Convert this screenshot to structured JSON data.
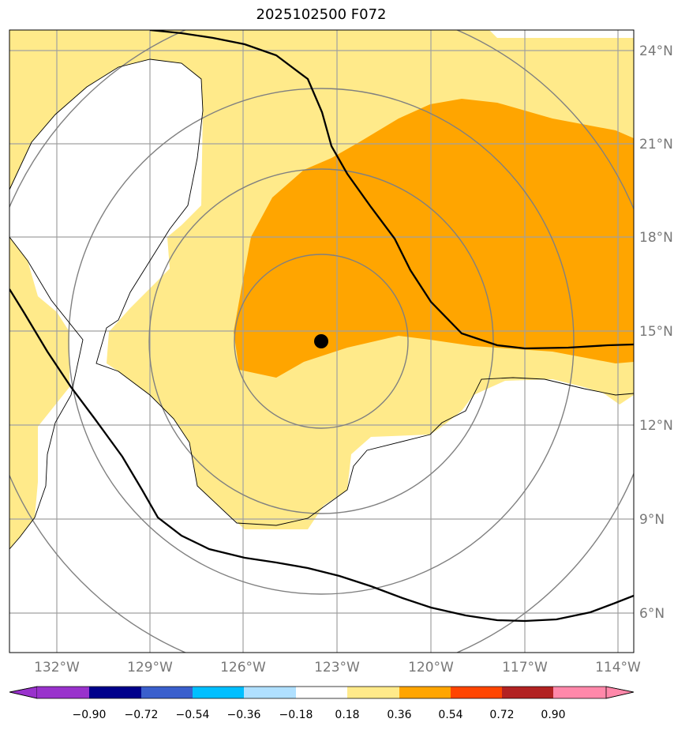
{
  "title": "2025102500 F072",
  "map": {
    "lon_range": [
      -133.5,
      -113.5
    ],
    "lat_range": [
      4.9,
      24.7
    ],
    "lon_ticks": [
      "132°W",
      "129°W",
      "126°W",
      "123°W",
      "120°W",
      "117°W",
      "114°W"
    ],
    "lon_tick_values": [
      -132,
      -129,
      -126,
      -123,
      -120,
      -117,
      -114
    ],
    "lat_ticks": [
      "24°N",
      "21°N",
      "18°N",
      "15°N",
      "12°N",
      "9°N",
      "6°N"
    ],
    "lat_tick_values": [
      24,
      21,
      18,
      15,
      12,
      9,
      6
    ],
    "center_marker": {
      "lon": -123.5,
      "lat": 14.7
    },
    "range_rings_deg": [
      2.5,
      6,
      8,
      12
    ],
    "fill_colors": {
      "light": "#ffea8a",
      "strong": "#ffa500"
    }
  },
  "colorbar": {
    "labels": [
      "−0.90",
      "−0.72",
      "−0.54",
      "−0.36",
      "−0.18",
      "0.18",
      "0.36",
      "0.54",
      "0.72",
      "0.90"
    ],
    "colors": [
      "#9932cc",
      "#00008b",
      "#3a5fcd",
      "#00bfff",
      "#b0e0ff",
      "#ffffff",
      "#ffea8a",
      "#ffa500",
      "#ff4500",
      "#b22222",
      "#ff88aa"
    ]
  }
}
